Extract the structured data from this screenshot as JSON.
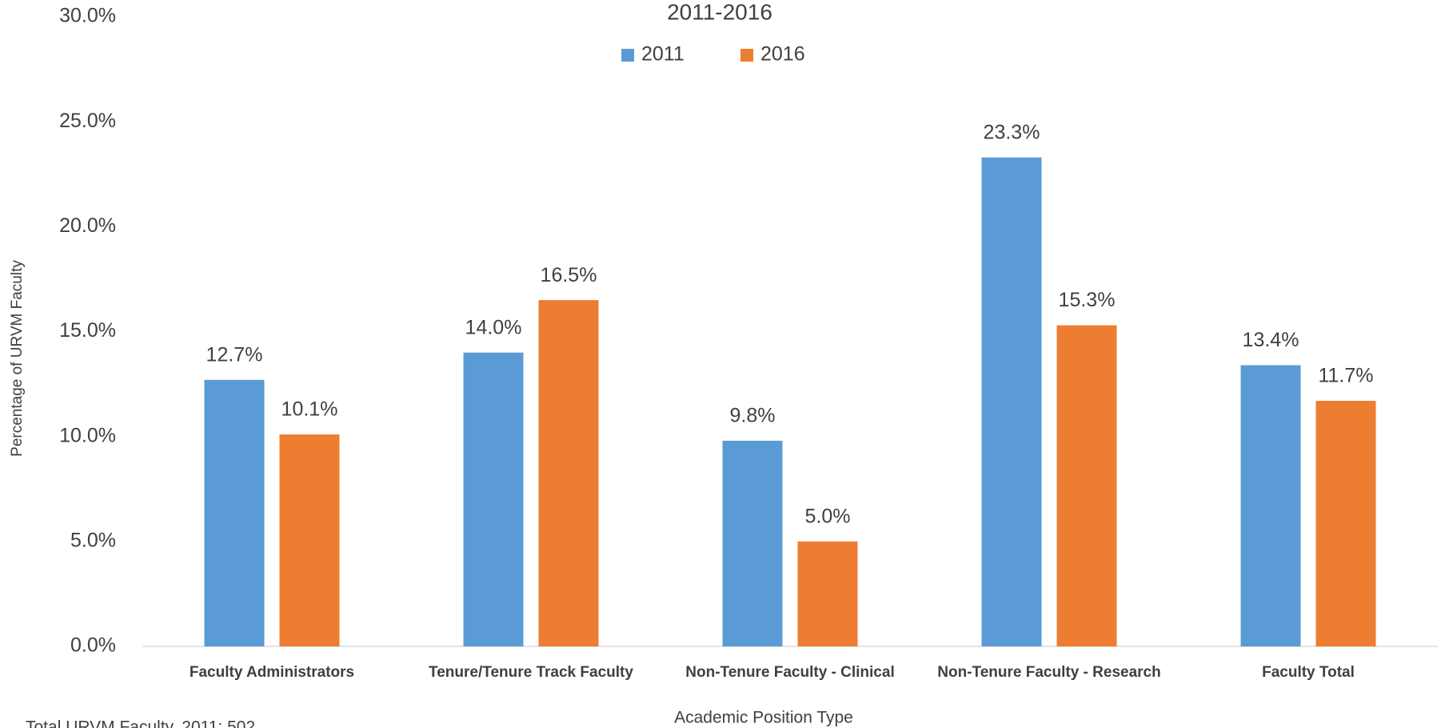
{
  "chart_data": {
    "type": "bar",
    "title": "2011-2016",
    "categories": [
      "Faculty Administrators",
      "Tenure/Tenure Track Faculty",
      "Non-Tenure Faculty - Clinical",
      "Non-Tenure Faculty - Research",
      "Faculty Total"
    ],
    "series": [
      {
        "name": "2011",
        "color": "#5b9bd5",
        "values": [
          12.7,
          14.0,
          9.8,
          23.3,
          13.4
        ],
        "value_labels": [
          "12.7%",
          "14.0%",
          "9.8%",
          "23.3%",
          "13.4%"
        ]
      },
      {
        "name": "2016",
        "color": "#ed7d31",
        "values": [
          10.1,
          16.5,
          5.0,
          15.3,
          11.7
        ],
        "value_labels": [
          "10.1%",
          "16.5%",
          "5.0%",
          "15.3%",
          "11.7%"
        ]
      }
    ],
    "ylim": [
      0,
      30
    ],
    "yticks": [
      {
        "value": 0,
        "label": "0.0%"
      },
      {
        "value": 5,
        "label": "5.0%"
      },
      {
        "value": 10,
        "label": "10.0%"
      },
      {
        "value": 15,
        "label": "15.0%"
      },
      {
        "value": 20,
        "label": "20.0%"
      },
      {
        "value": 25,
        "label": "25.0%"
      },
      {
        "value": 30,
        "label": "30.0%"
      }
    ],
    "y_label": "Percentage of URVM Faculty",
    "x_label": "Academic Position Type",
    "annotation": "Total URVM Faculty, 2011: 502",
    "legend": "top"
  }
}
